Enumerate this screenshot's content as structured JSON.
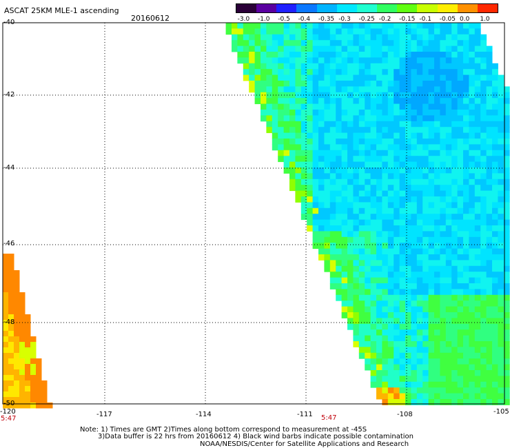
{
  "header": {
    "title": "ASCAT 25KM MLE-1 ascending",
    "date": "20160612"
  },
  "colorbar": {
    "tick_labels": [
      "-3.0",
      "-1.0",
      "-0.5",
      "-0.4",
      "-0.35",
      "-0.3",
      "-0.25",
      "-0.2",
      "-0.15",
      "-0.1",
      "-0.05",
      "0.0",
      "1.0"
    ],
    "colors": [
      "#2a0038",
      "#5a00a0",
      "#2020ff",
      "#0a78ff",
      "#00b4ff",
      "#00e8ff",
      "#20ffd0",
      "#30ff60",
      "#60ff10",
      "#c8ff00",
      "#ffee00",
      "#ff9000",
      "#ff2800"
    ]
  },
  "axes": {
    "lat_labels": [
      "-40",
      "-42",
      "-44",
      "-46",
      "-48",
      "-50"
    ],
    "lon_labels": [
      "-120",
      "-117",
      "-114",
      "-111",
      "-108",
      "-105"
    ]
  },
  "time_labels": {
    "left": "5:47",
    "center": "5:47"
  },
  "notes": {
    "line1": "Note: 1) Times are GMT 2)Times along bottom correspond to measurement at -45S",
    "line2": "3)Data buffer is 22 hrs from 20160612 4) Black wind barbs indicate possible contamination",
    "line3": "NOAA/NESDIS/Center for Satellite Applications and Research"
  }
}
